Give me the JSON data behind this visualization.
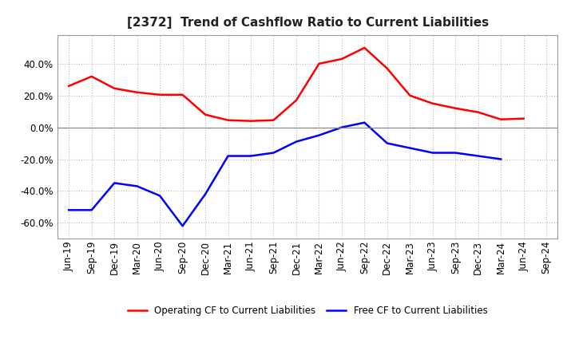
{
  "title": "[2372]  Trend of Cashflow Ratio to Current Liabilities",
  "x_labels": [
    "Jun-19",
    "Sep-19",
    "Dec-19",
    "Mar-20",
    "Jun-20",
    "Sep-20",
    "Dec-20",
    "Mar-21",
    "Jun-21",
    "Sep-21",
    "Dec-21",
    "Mar-22",
    "Jun-22",
    "Sep-22",
    "Dec-22",
    "Mar-23",
    "Jun-23",
    "Sep-23",
    "Dec-23",
    "Mar-24",
    "Jun-24",
    "Sep-24"
  ],
  "operating_cf": [
    26.0,
    32.0,
    24.5,
    22.0,
    20.5,
    20.5,
    8.0,
    4.5,
    4.0,
    4.5,
    17.0,
    40.0,
    43.0,
    50.0,
    37.0,
    20.0,
    15.0,
    12.0,
    9.5,
    5.0,
    5.5,
    null
  ],
  "free_cf": [
    -52.0,
    -52.0,
    -35.0,
    -37.0,
    -43.0,
    -62.0,
    -42.0,
    -18.0,
    -18.0,
    -16.0,
    -9.0,
    -5.0,
    0.0,
    3.0,
    -10.0,
    -13.0,
    -16.0,
    -16.0,
    -18.0,
    -20.0,
    null,
    null
  ],
  "operating_color": "#ff0000",
  "free_color": "#0000ff",
  "ylim": [
    -70,
    58
  ],
  "yticks": [
    -60.0,
    -40.0,
    -20.0,
    0.0,
    20.0,
    40.0
  ],
  "background_color": "#ffffff",
  "grid_color": "#bbbbbb",
  "title_fontsize": 11,
  "tick_fontsize": 8.5,
  "legend_labels": [
    "Operating CF to Current Liabilities",
    "Free CF to Current Liabilities"
  ]
}
